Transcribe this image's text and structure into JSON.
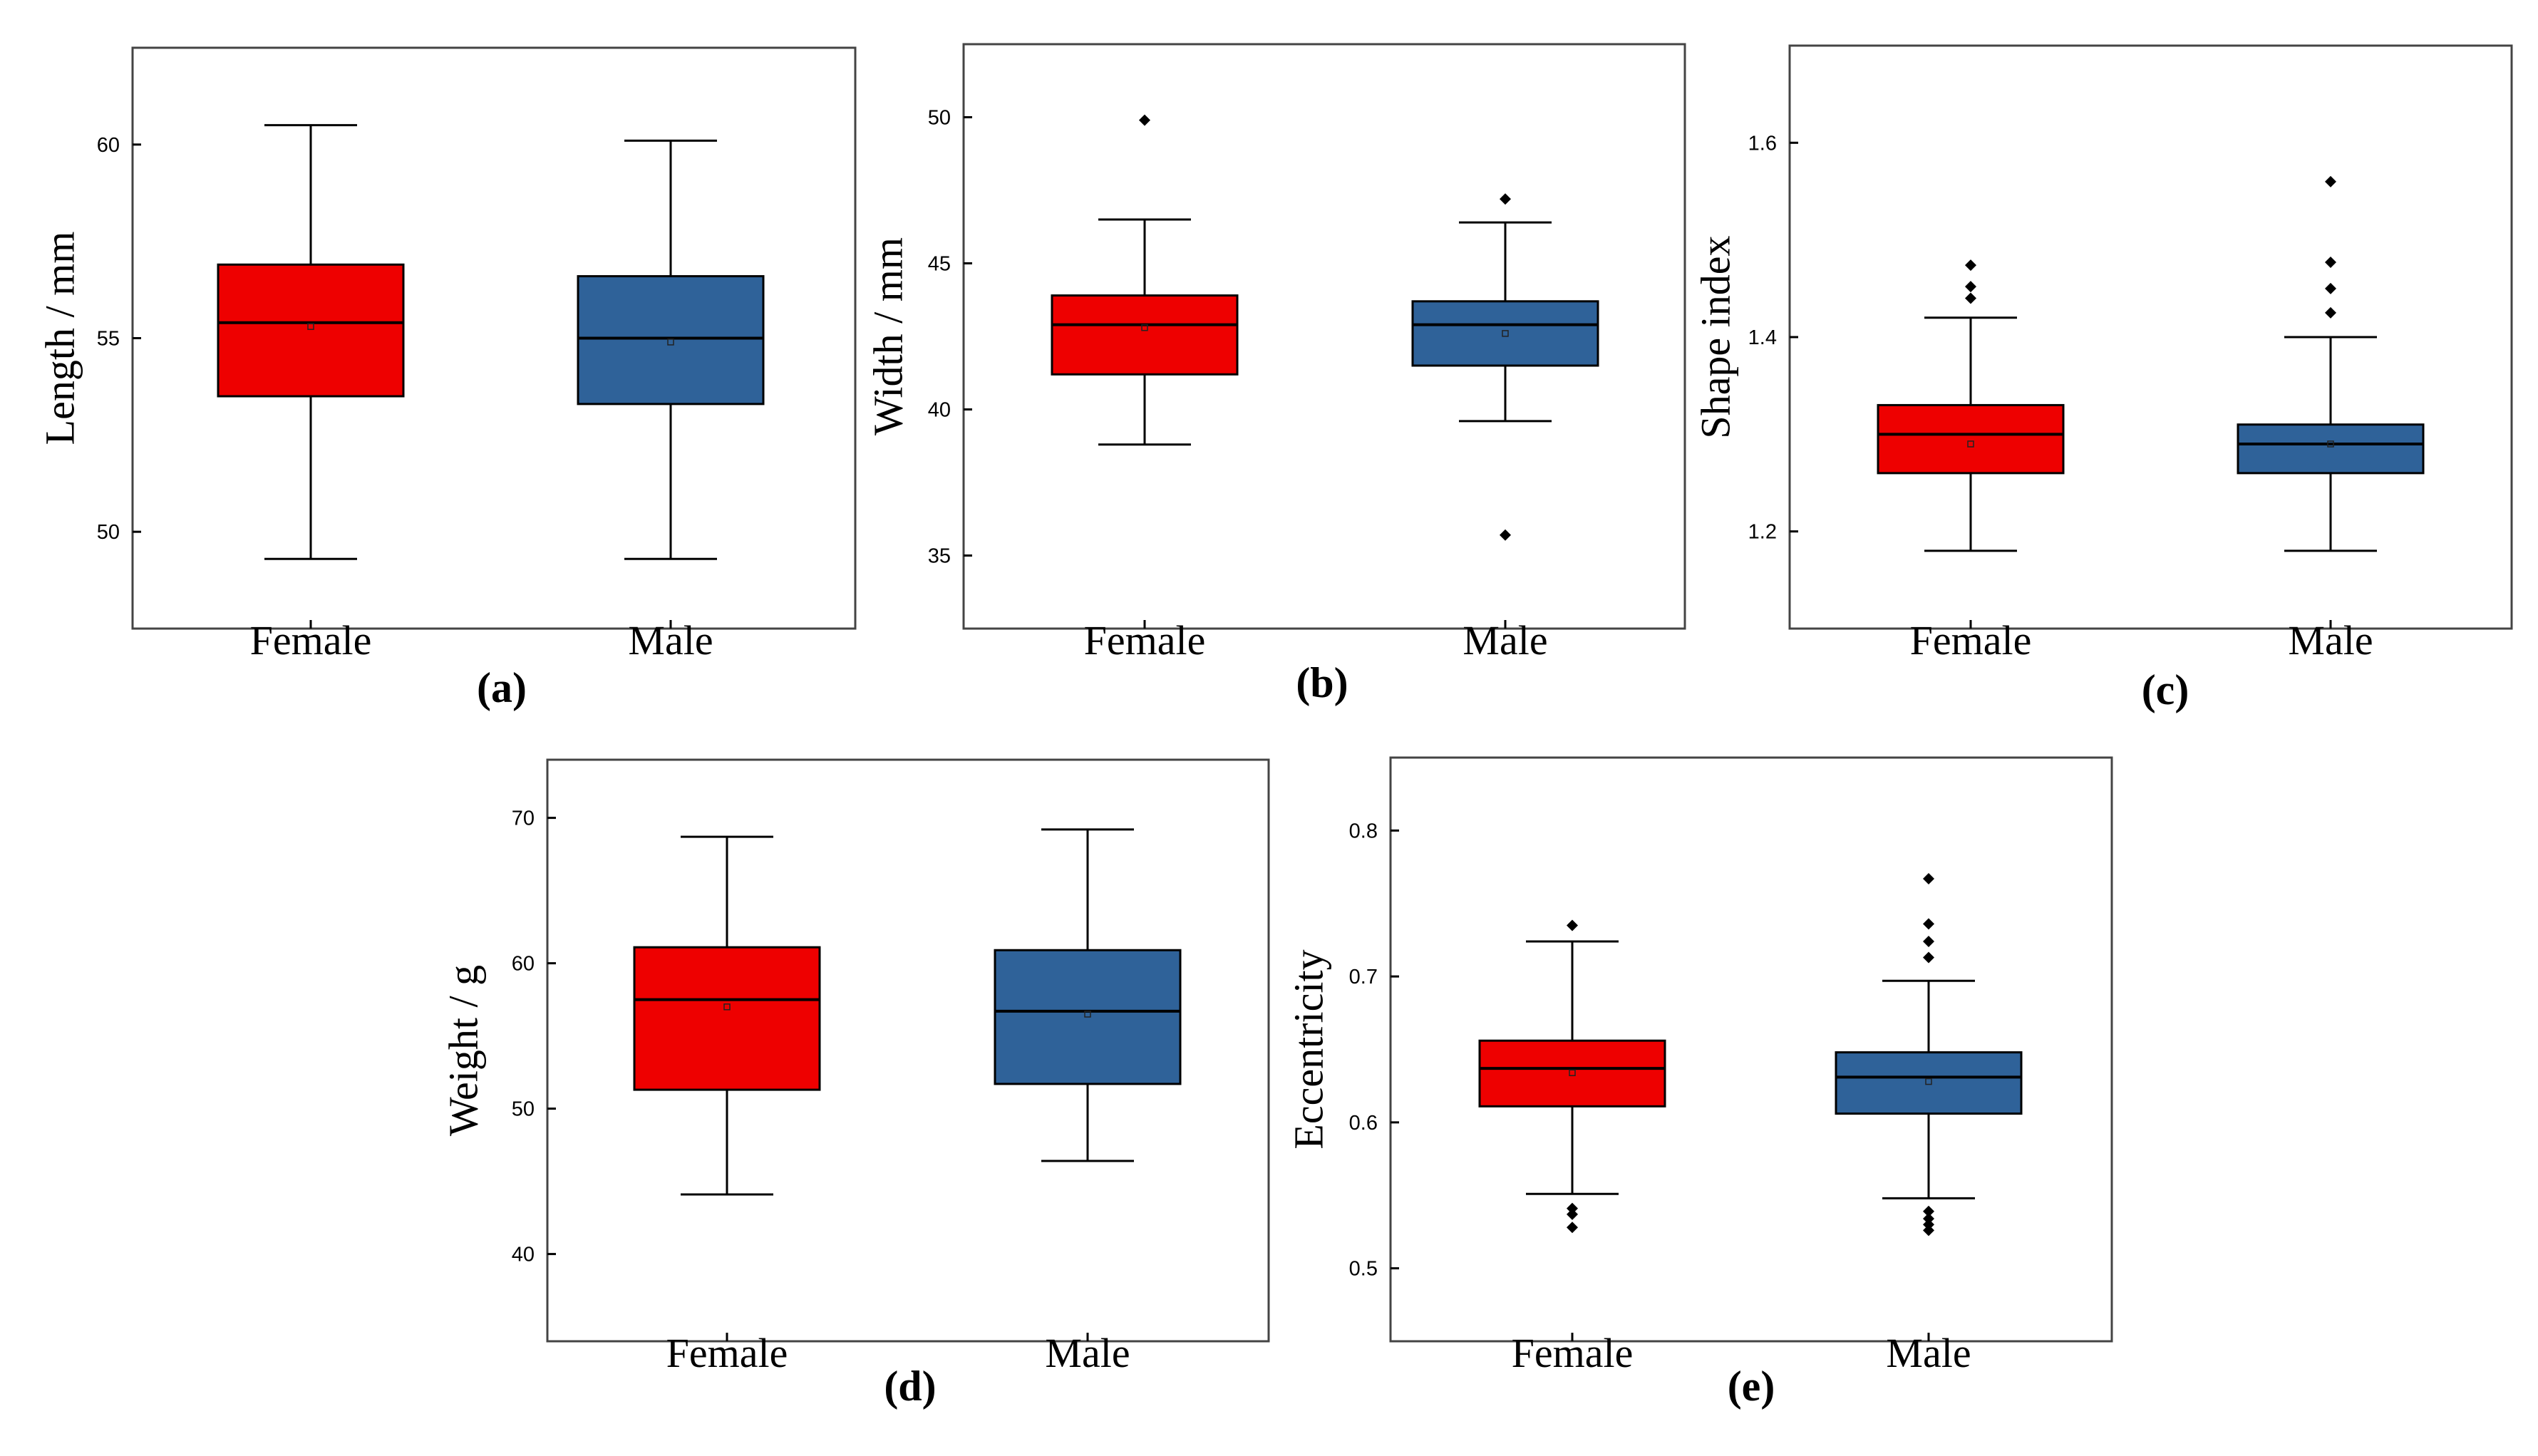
{
  "colors": {
    "female_box": "#ee0000",
    "male_box": "#2f6299",
    "frame": "#444444"
  },
  "chart_data": [
    {
      "type": "box",
      "panel_label": "(a)",
      "ylabel": "Length / mm",
      "categories": [
        "Female",
        "Male"
      ],
      "yticks": [
        "50",
        "55",
        "60"
      ],
      "ylim": [
        47.5,
        62.5
      ],
      "series": [
        {
          "name": "Female",
          "min": 49.3,
          "q1": 53.5,
          "median": 55.4,
          "mean": 55.3,
          "q3": 56.9,
          "max": 60.5,
          "outliers": []
        },
        {
          "name": "Male",
          "min": 49.3,
          "q1": 53.3,
          "median": 55.0,
          "mean": 54.9,
          "q3": 56.6,
          "max": 60.1,
          "outliers": []
        }
      ]
    },
    {
      "type": "box",
      "panel_label": "(b)",
      "ylabel": "Width / mm",
      "categories": [
        "Female",
        "Male"
      ],
      "yticks": [
        "35",
        "40",
        "45",
        "50"
      ],
      "ylim": [
        32.5,
        52.5
      ],
      "series": [
        {
          "name": "Female",
          "min": 38.8,
          "q1": 41.2,
          "median": 42.9,
          "mean": 42.8,
          "q3": 43.9,
          "max": 46.5,
          "outliers": [
            49.9
          ]
        },
        {
          "name": "Male",
          "min": 39.6,
          "q1": 41.5,
          "median": 42.9,
          "mean": 42.6,
          "q3": 43.7,
          "max": 46.4,
          "outliers": [
            47.2,
            35.7
          ]
        }
      ]
    },
    {
      "type": "box",
      "panel_label": "(c)",
      "ylabel": "Shape index",
      "categories": [
        "Female",
        "Male"
      ],
      "yticks": [
        "1.2",
        "1.4",
        "1.6"
      ],
      "ylim": [
        1.1,
        1.7
      ],
      "series": [
        {
          "name": "Female",
          "min": 1.18,
          "q1": 1.26,
          "median": 1.3,
          "mean": 1.29,
          "q3": 1.33,
          "max": 1.42,
          "outliers": [
            1.474,
            1.452,
            1.44
          ]
        },
        {
          "name": "Male",
          "min": 1.18,
          "q1": 1.26,
          "median": 1.29,
          "mean": 1.29,
          "q3": 1.31,
          "max": 1.4,
          "outliers": [
            1.56,
            1.477,
            1.45,
            1.425
          ]
        }
      ]
    },
    {
      "type": "box",
      "panel_label": "(d)",
      "ylabel": "Weight / g",
      "categories": [
        "Female",
        "Male"
      ],
      "yticks": [
        "40",
        "50",
        "60",
        "70"
      ],
      "ylim": [
        34,
        74
      ],
      "series": [
        {
          "name": "Female",
          "min": 44.1,
          "q1": 51.3,
          "median": 57.5,
          "mean": 57.0,
          "q3": 61.1,
          "max": 68.7,
          "outliers": []
        },
        {
          "name": "Male",
          "min": 46.4,
          "q1": 51.7,
          "median": 56.7,
          "mean": 56.5,
          "q3": 60.9,
          "max": 69.2,
          "outliers": []
        }
      ]
    },
    {
      "type": "box",
      "panel_label": "(e)",
      "ylabel": "Eccentricity",
      "categories": [
        "Female",
        "Male"
      ],
      "yticks": [
        "0.5",
        "0.6",
        "0.7",
        "0.8"
      ],
      "ylim": [
        0.45,
        0.85
      ],
      "series": [
        {
          "name": "Female",
          "min": 0.551,
          "q1": 0.611,
          "median": 0.637,
          "mean": 0.634,
          "q3": 0.656,
          "max": 0.724,
          "outliers": [
            0.735,
            0.541,
            0.537,
            0.528
          ]
        },
        {
          "name": "Male",
          "min": 0.548,
          "q1": 0.606,
          "median": 0.631,
          "mean": 0.628,
          "q3": 0.648,
          "max": 0.697,
          "outliers": [
            0.767,
            0.736,
            0.724,
            0.713,
            0.539,
            0.534,
            0.53,
            0.526
          ]
        }
      ]
    }
  ]
}
